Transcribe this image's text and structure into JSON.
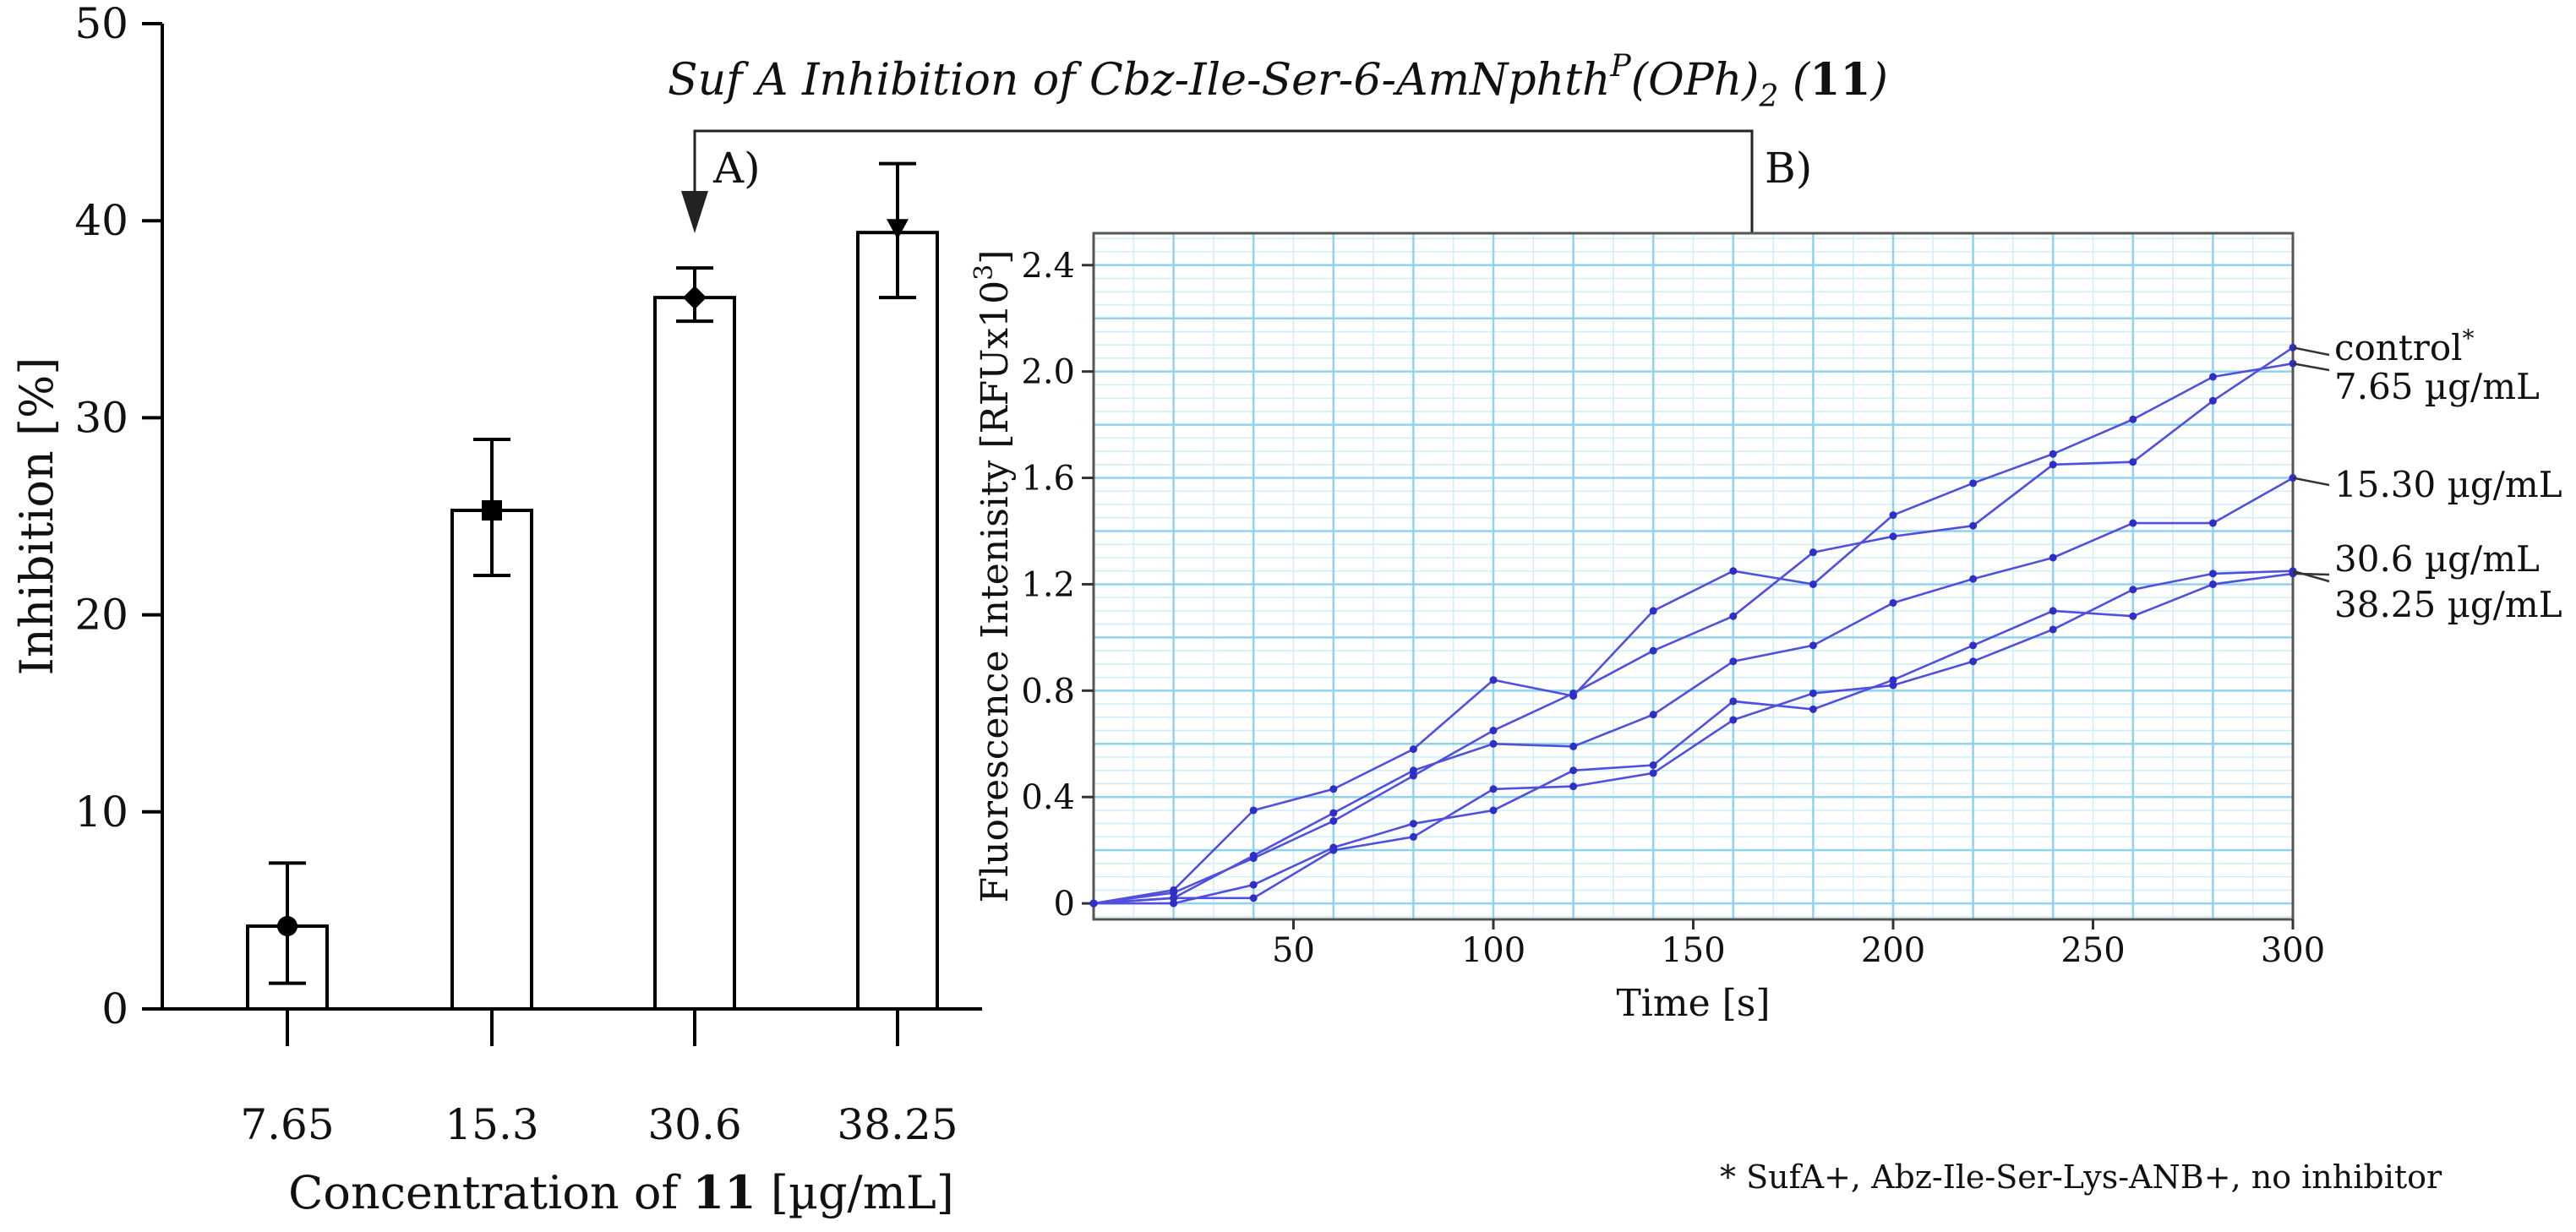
{
  "figure": {
    "title": {
      "prefix": "Suf A Inhibition of Cbz-Ile-Ser-6-AmNphth",
      "superscript": "P",
      "group": "(OPh)",
      "subscript": "2",
      "open_paren": " (",
      "compound": "11",
      "close_paren": ")"
    },
    "panel_a_marker": "A)",
    "panel_b_marker": "B)",
    "footnote": "* SufA+, Abz-Ile-Ser-Lys-ANB+, no inhibitor"
  },
  "chart_data": [
    {
      "panel": "A",
      "type": "bar",
      "categories": [
        "7.65",
        "15.3",
        "30.6",
        "38.25"
      ],
      "values": [
        4.2,
        25.3,
        36.1,
        39.4
      ],
      "error_low": [
        1.3,
        22.0,
        34.9,
        36.1
      ],
      "error_high": [
        7.4,
        28.9,
        37.6,
        42.9
      ],
      "xlabel_prefix": "Concentration of ",
      "xlabel_bold": "11",
      "xlabel_suffix": " [µg/mL]",
      "ylabel": "Inhibition [%]",
      "ylim": [
        0,
        50
      ],
      "yticks": [
        "0",
        "10",
        "20",
        "30",
        "40",
        "50"
      ],
      "colors": {
        "bar_fill": "#ffffff",
        "bar_stroke": "#000000"
      }
    },
    {
      "panel": "B",
      "type": "line",
      "x": [
        0,
        20,
        40,
        60,
        80,
        100,
        120,
        140,
        160,
        180,
        200,
        220,
        240,
        260,
        280,
        300
      ],
      "series": [
        {
          "name": "control",
          "label": "control",
          "label_sup": "*",
          "values": [
            0,
            0.04,
            0.17,
            0.31,
            0.48,
            0.65,
            0.79,
            0.95,
            1.08,
            1.32,
            1.38,
            1.42,
            1.65,
            1.66,
            1.89,
            2.09
          ]
        },
        {
          "name": "7.65 µg/mL",
          "label": "7.65 µg/mL",
          "values": [
            0,
            0.05,
            0.35,
            0.43,
            0.58,
            0.84,
            0.78,
            1.1,
            1.25,
            1.2,
            1.46,
            1.58,
            1.69,
            1.82,
            1.98,
            2.03
          ]
        },
        {
          "name": "15.30 µg/mL",
          "label": "15.30 µg/mL",
          "values": [
            0,
            0.02,
            0.18,
            0.34,
            0.5,
            0.6,
            0.59,
            0.71,
            0.91,
            0.97,
            1.13,
            1.22,
            1.3,
            1.43,
            1.43,
            1.6
          ]
        },
        {
          "name": "30.6 µg/mL",
          "label": "30.6 µg/mL",
          "values": [
            0,
            0.0,
            0.07,
            0.21,
            0.3,
            0.35,
            0.5,
            0.52,
            0.76,
            0.73,
            0.84,
            0.97,
            1.1,
            1.08,
            1.2,
            1.24
          ]
        },
        {
          "name": "38.25 µg/mL",
          "label": "38.25 µg/mL",
          "values": [
            0,
            0.02,
            0.02,
            0.2,
            0.25,
            0.43,
            0.44,
            0.49,
            0.69,
            0.79,
            0.82,
            0.91,
            1.03,
            1.18,
            1.24,
            1.25
          ]
        }
      ],
      "xlabel": "Time [s]",
      "ylabel_prefix": "Fluorescence Intenisity [RFUx10",
      "ylabel_sup": "3",
      "ylabel_suffix": "]",
      "xlim": [
        0,
        300
      ],
      "ylim": [
        -0.06,
        2.52
      ],
      "xticks": [
        50,
        100,
        150,
        200,
        250,
        300
      ],
      "yticks": [
        {
          "value": 0,
          "label": "0"
        },
        {
          "value": 0.4,
          "label": "0.4"
        },
        {
          "value": 0.8,
          "label": "0.8"
        },
        {
          "value": 1.2,
          "label": "1.2"
        },
        {
          "value": 1.6,
          "label": "1.6"
        },
        {
          "value": 2.0,
          "label": "2.0"
        },
        {
          "value": 2.4,
          "label": "2.4"
        }
      ],
      "grid": true,
      "colors": {
        "line": "#5050dc",
        "marker": "#2e2ec8",
        "grid_major": "#8fd3ee",
        "grid_minor": "#cdeefa"
      }
    }
  ]
}
